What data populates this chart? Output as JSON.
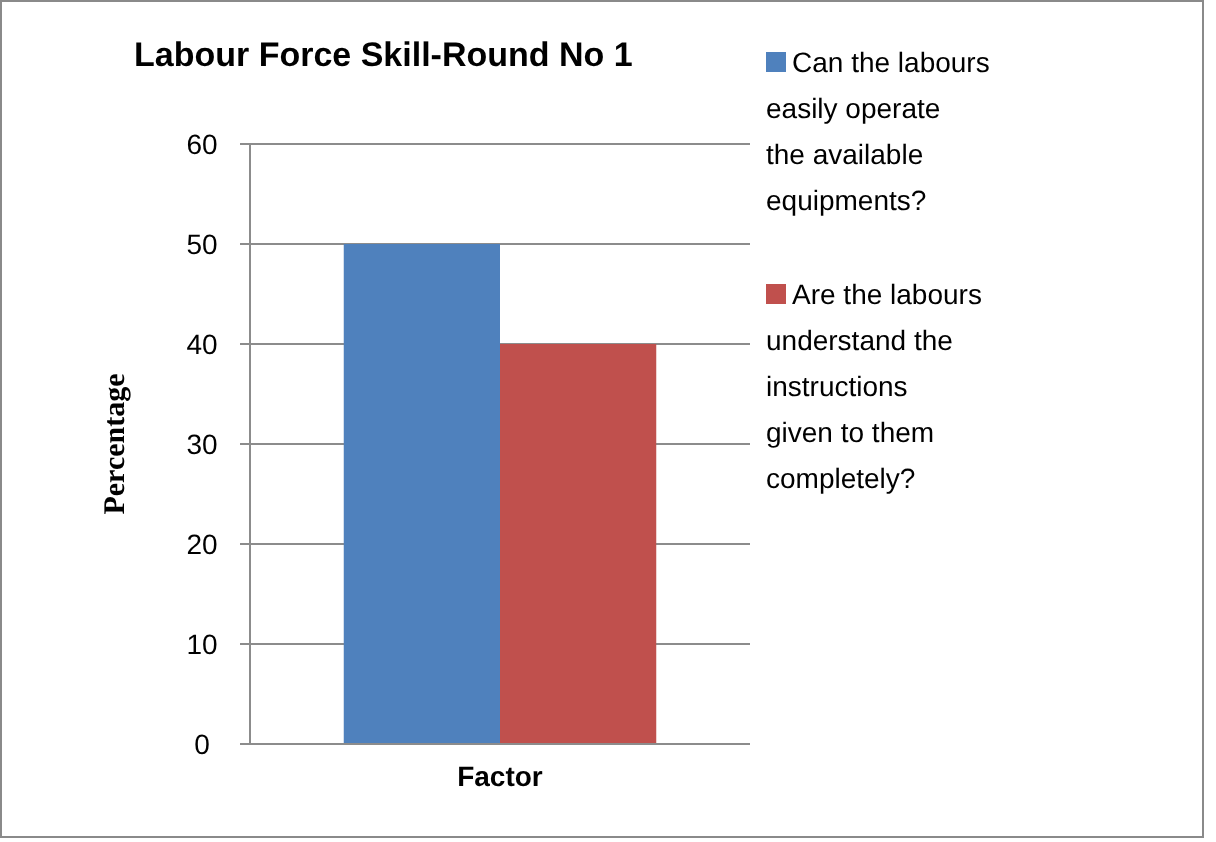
{
  "chart_data": {
    "type": "bar",
    "title": "Labour Force Skill-Round No 1",
    "xlabel": "Factor",
    "ylabel": "Percentage",
    "categories": [
      null
    ],
    "series": [
      {
        "name": "Can the labours easily operate the available equipments?",
        "color": "#4f81bd",
        "values": [
          50
        ]
      },
      {
        "name": "Are the labours understand the instructions given to them completely?",
        "color": "#c0504d",
        "values": [
          40
        ]
      }
    ],
    "ylim": [
      0,
      60
    ],
    "yticks": [
      0,
      10,
      20,
      30,
      40,
      50,
      60
    ],
    "grid": "y",
    "legend": "right"
  }
}
